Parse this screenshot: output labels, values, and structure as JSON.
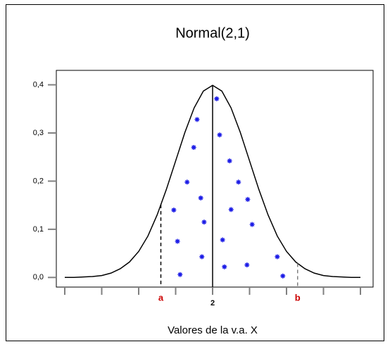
{
  "chart_data": {
    "type": "line",
    "title": "Normal(2,1)",
    "xlabel": "Valores de la v.a. X",
    "xlim": [
      -2,
      6
    ],
    "ylim": [
      -0.02,
      0.43
    ],
    "xticks": [
      {
        "value": -2,
        "label": null
      },
      {
        "value": -1,
        "label": null
      },
      {
        "value": 0,
        "label": null
      },
      {
        "value": 1,
        "label": null
      },
      2,
      {
        "value": 3,
        "label": null
      },
      {
        "value": 4,
        "label": null
      },
      {
        "value": 5,
        "label": null
      },
      {
        "value": 6,
        "label": null
      }
    ],
    "yticks": [
      {
        "value": 0,
        "label": "0,0"
      },
      {
        "value": 0.1,
        "label": "0,1"
      },
      {
        "value": 0.2,
        "label": "0,2"
      },
      {
        "value": 0.3,
        "label": "0,3"
      },
      {
        "value": 0.4,
        "label": "0,4"
      }
    ],
    "curve": {
      "color": "#000000",
      "x": [
        -2,
        -1.75,
        -1.5,
        -1.25,
        -1,
        -0.75,
        -0.5,
        -0.25,
        0,
        0.25,
        0.5,
        0.75,
        1,
        1.25,
        1.5,
        1.75,
        2,
        2.25,
        2.5,
        2.75,
        3,
        3.25,
        3.5,
        3.75,
        4,
        4.25,
        4.5,
        4.75,
        5,
        5.25,
        5.5,
        5.75,
        6
      ],
      "y": [
        0.0,
        0.0,
        0.001,
        0.002,
        0.004,
        0.009,
        0.018,
        0.032,
        0.054,
        0.086,
        0.13,
        0.183,
        0.242,
        0.301,
        0.352,
        0.387,
        0.399,
        0.387,
        0.352,
        0.301,
        0.242,
        0.183,
        0.13,
        0.086,
        0.054,
        0.032,
        0.018,
        0.009,
        0.004,
        0.002,
        0.001,
        0.0,
        0.0
      ]
    },
    "points": {
      "color": "#1a1ae6",
      "x": [
        2.11,
        1.58,
        1.49,
        2.19,
        1.31,
        2.46,
        0.95,
        1.68,
        2.7,
        1.77,
        2.5,
        2.95,
        1.05,
        3.07,
        2.27,
        1.71,
        1.12,
        2.32,
        2.93,
        3.75,
        3.9
      ],
      "y": [
        0.371,
        0.328,
        0.27,
        0.296,
        0.198,
        0.242,
        0.14,
        0.165,
        0.198,
        0.115,
        0.141,
        0.162,
        0.075,
        0.11,
        0.078,
        0.043,
        0.006,
        0.022,
        0.026,
        0.043,
        0.003
      ]
    },
    "vlines": [
      {
        "x": 2,
        "style": "solid",
        "color": "#000000"
      },
      {
        "x": 0.6,
        "style": "dashed",
        "color": "#000000",
        "label": "a",
        "label_color": "#cc0000"
      },
      {
        "x": 4.3,
        "style": "dashed",
        "color": "#808080",
        "label": "b",
        "label_color": "#cc0000"
      }
    ]
  }
}
